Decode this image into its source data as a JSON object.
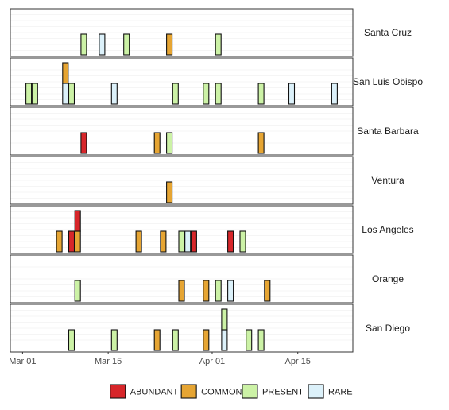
{
  "chart_data": {
    "type": "bar",
    "subtype": "faceted-stacked-date-tiles",
    "title": "",
    "xlabel": "",
    "ylabel": "",
    "facet_position": "right",
    "grid": true,
    "legend_position": "bottom",
    "x_ticks": [
      {
        "date": "2000-03-01",
        "label": "Mar 01"
      },
      {
        "date": "2000-03-15",
        "label": "Mar 15"
      },
      {
        "date": "2000-04-01",
        "label": "Apr 01"
      },
      {
        "date": "2000-04-15",
        "label": "Apr 15"
      }
    ],
    "xlim": [
      "2000-02-28",
      "2000-04-24"
    ],
    "categories": [
      {
        "name": "ABUNDANT",
        "color": "#d7262a"
      },
      {
        "name": "COMMON",
        "color": "#e6a533"
      },
      {
        "name": "PRESENT",
        "color": "#ccf2a6"
      },
      {
        "name": "RARE",
        "color": "#dcf1fa"
      }
    ],
    "facets": [
      {
        "name": "Santa Cruz",
        "observations": [
          {
            "date": "2000-03-11",
            "stack": [
              "PRESENT"
            ]
          },
          {
            "date": "2000-03-14",
            "stack": [
              "RARE"
            ]
          },
          {
            "date": "2000-03-18",
            "stack": [
              "PRESENT"
            ]
          },
          {
            "date": "2000-03-25",
            "stack": [
              "COMMON"
            ]
          },
          {
            "date": "2000-04-02",
            "stack": [
              "PRESENT"
            ]
          }
        ]
      },
      {
        "name": "San Luis Obispo",
        "observations": [
          {
            "date": "2000-03-02",
            "stack": [
              "PRESENT"
            ]
          },
          {
            "date": "2000-03-03",
            "stack": [
              "PRESENT"
            ]
          },
          {
            "date": "2000-03-08",
            "stack": [
              "RARE",
              "COMMON"
            ]
          },
          {
            "date": "2000-03-09",
            "stack": [
              "PRESENT"
            ]
          },
          {
            "date": "2000-03-16",
            "stack": [
              "RARE"
            ]
          },
          {
            "date": "2000-03-26",
            "stack": [
              "PRESENT"
            ]
          },
          {
            "date": "2000-03-31",
            "stack": [
              "PRESENT"
            ]
          },
          {
            "date": "2000-04-02",
            "stack": [
              "PRESENT"
            ]
          },
          {
            "date": "2000-04-09",
            "stack": [
              "PRESENT"
            ]
          },
          {
            "date": "2000-04-14",
            "stack": [
              "RARE"
            ]
          },
          {
            "date": "2000-04-21",
            "stack": [
              "RARE"
            ]
          }
        ]
      },
      {
        "name": "Santa Barbara",
        "observations": [
          {
            "date": "2000-03-11",
            "stack": [
              "ABUNDANT"
            ]
          },
          {
            "date": "2000-03-23",
            "stack": [
              "COMMON"
            ]
          },
          {
            "date": "2000-03-25",
            "stack": [
              "PRESENT"
            ]
          },
          {
            "date": "2000-04-09",
            "stack": [
              "COMMON"
            ]
          }
        ]
      },
      {
        "name": "Ventura",
        "observations": [
          {
            "date": "2000-03-25",
            "stack": [
              "COMMON"
            ]
          }
        ]
      },
      {
        "name": "Los Angeles",
        "observations": [
          {
            "date": "2000-03-07",
            "stack": [
              "COMMON"
            ]
          },
          {
            "date": "2000-03-09",
            "stack": [
              "ABUNDANT"
            ]
          },
          {
            "date": "2000-03-10",
            "stack": [
              "COMMON",
              "ABUNDANT"
            ]
          },
          {
            "date": "2000-03-20",
            "stack": [
              "COMMON"
            ]
          },
          {
            "date": "2000-03-24",
            "stack": [
              "COMMON"
            ]
          },
          {
            "date": "2000-03-27",
            "stack": [
              "PRESENT"
            ]
          },
          {
            "date": "2000-03-28",
            "stack": [
              "RARE"
            ]
          },
          {
            "date": "2000-03-29",
            "stack": [
              "ABUNDANT"
            ]
          },
          {
            "date": "2000-04-04",
            "stack": [
              "ABUNDANT"
            ]
          },
          {
            "date": "2000-04-06",
            "stack": [
              "PRESENT"
            ]
          }
        ]
      },
      {
        "name": "Orange",
        "observations": [
          {
            "date": "2000-03-10",
            "stack": [
              "PRESENT"
            ]
          },
          {
            "date": "2000-03-27",
            "stack": [
              "COMMON"
            ]
          },
          {
            "date": "2000-03-31",
            "stack": [
              "COMMON"
            ]
          },
          {
            "date": "2000-04-02",
            "stack": [
              "PRESENT"
            ]
          },
          {
            "date": "2000-04-04",
            "stack": [
              "RARE"
            ]
          },
          {
            "date": "2000-04-10",
            "stack": [
              "COMMON"
            ]
          }
        ]
      },
      {
        "name": "San Diego",
        "observations": [
          {
            "date": "2000-03-09",
            "stack": [
              "PRESENT"
            ]
          },
          {
            "date": "2000-03-16",
            "stack": [
              "PRESENT"
            ]
          },
          {
            "date": "2000-03-23",
            "stack": [
              "COMMON"
            ]
          },
          {
            "date": "2000-03-26",
            "stack": [
              "PRESENT"
            ]
          },
          {
            "date": "2000-03-31",
            "stack": [
              "COMMON"
            ]
          },
          {
            "date": "2000-04-03",
            "stack": [
              "RARE",
              "PRESENT"
            ]
          },
          {
            "date": "2000-04-07",
            "stack": [
              "PRESENT"
            ]
          },
          {
            "date": "2000-04-09",
            "stack": [
              "PRESENT"
            ]
          }
        ]
      }
    ]
  }
}
